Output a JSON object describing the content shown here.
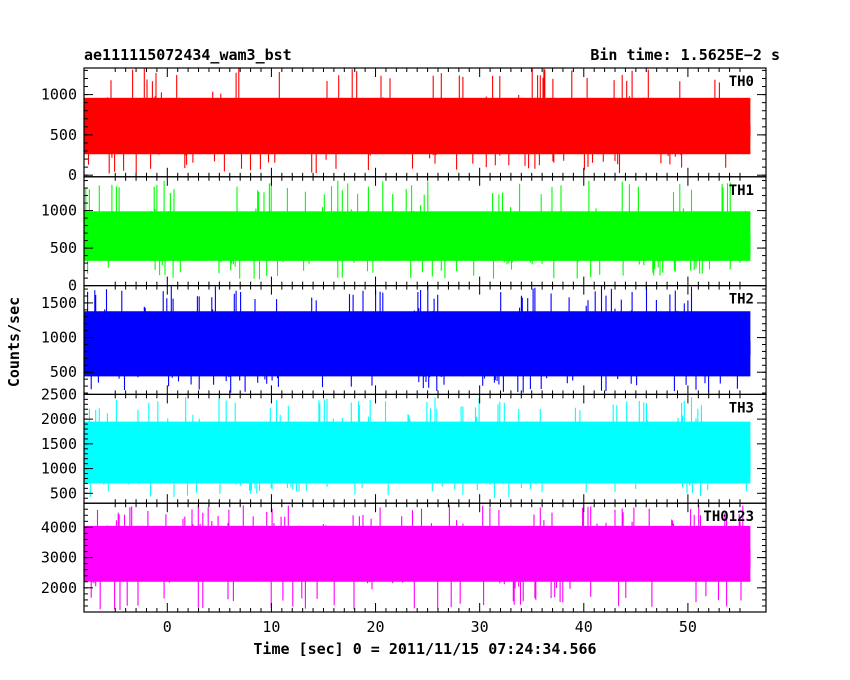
{
  "header": {
    "title": "ae111115072434_wam3_bst",
    "bin_time": "Bin time: 1.5625E−2 s"
  },
  "chart_data": {
    "type": "line",
    "title": "ae111115072434_wam3_bst",
    "subtitle": "Bin time: 1.5625E−2 s",
    "xlabel": "Time [sec] 0 = 2011/11/15 07:24:34.566",
    "ylabel": "Counts/sec",
    "xlim": [
      -8.0,
      57.5
    ],
    "x_ticks": [
      0,
      10,
      20,
      30,
      40,
      50
    ],
    "x_tick_labels": [
      "0",
      "10",
      "20",
      "30",
      "40",
      "50"
    ],
    "x_range_data": [
      -8.0,
      56.0
    ],
    "bin_time_s": 0.015625,
    "grid": false,
    "panels": [
      {
        "name": "TH0",
        "color": "#ff0000",
        "ylim": [
          -20,
          1330
        ],
        "y_ticks": [
          0,
          500,
          1000
        ],
        "y_tick_labels": [
          "0",
          "500",
          "1000"
        ],
        "mean": 600,
        "band_low": 260,
        "band_high": 960,
        "min": 20,
        "max": 1330
      },
      {
        "name": "TH1",
        "color": "#00ff00",
        "ylim": [
          0,
          1450
        ],
        "y_ticks": [
          0,
          500,
          1000
        ],
        "y_tick_labels": [
          "0",
          "500",
          "1000"
        ],
        "mean": 640,
        "band_low": 330,
        "band_high": 990,
        "min": 80,
        "max": 1400
      },
      {
        "name": "TH2",
        "color": "#0000ff",
        "ylim": [
          180,
          1750
        ],
        "y_ticks": [
          500,
          1000,
          1500
        ],
        "y_tick_labels": [
          "500",
          "1000",
          "1500"
        ],
        "mean": 880,
        "band_low": 440,
        "band_high": 1380,
        "min": 200,
        "max": 1750
      },
      {
        "name": "TH3",
        "color": "#00ffff",
        "ylim": [
          300,
          2500
        ],
        "y_ticks": [
          500,
          1000,
          1500,
          2000,
          2500
        ],
        "y_tick_labels": [
          "500",
          "1000",
          "1500",
          "2000",
          "2500"
        ],
        "mean": 1350,
        "band_low": 700,
        "band_high": 1950,
        "min": 400,
        "max": 2450
      },
      {
        "name": "TH0123",
        "color": "#ff00ff",
        "ylim": [
          1200,
          4800
        ],
        "y_ticks": [
          2000,
          3000,
          4000
        ],
        "y_tick_labels": [
          "2000",
          "3000",
          "4000"
        ],
        "mean": 3150,
        "band_low": 2200,
        "band_high": 4050,
        "min": 1250,
        "max": 4750
      }
    ]
  }
}
